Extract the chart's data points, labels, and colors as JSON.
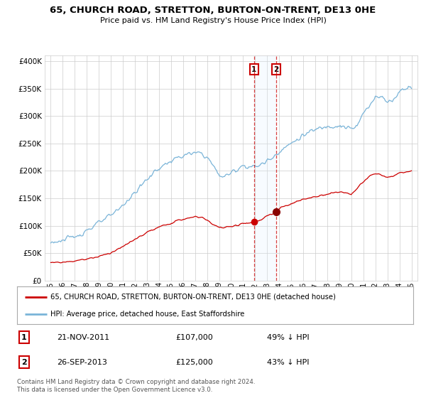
{
  "title": "65, CHURCH ROAD, STRETTON, BURTON-ON-TRENT, DE13 0HE",
  "subtitle": "Price paid vs. HM Land Registry's House Price Index (HPI)",
  "hpi_label": "HPI: Average price, detached house, East Staffordshire",
  "property_label": "65, CHURCH ROAD, STRETTON, BURTON-ON-TRENT, DE13 0HE (detached house)",
  "footer_text": "Contains HM Land Registry data © Crown copyright and database right 2024.\nThis data is licensed under the Open Government Licence v3.0.",
  "sale1_date": "21-NOV-2011",
  "sale1_price": 107000,
  "sale1_pct": "49% ↓ HPI",
  "sale2_date": "26-SEP-2013",
  "sale2_price": 125000,
  "sale2_pct": "43% ↓ HPI",
  "hpi_color": "#7ab4d8",
  "property_color": "#cc0000",
  "sale1_x": 2011.9,
  "sale2_x": 2013.75,
  "sale1_y": 107000,
  "sale2_y": 125000,
  "ylim": [
    0,
    410000
  ],
  "xlim_start": 1994.5,
  "xlim_end": 2025.5,
  "yticks": [
    0,
    50000,
    100000,
    150000,
    200000,
    250000,
    300000,
    350000,
    400000
  ],
  "xticks": [
    1995,
    1996,
    1997,
    1998,
    1999,
    2000,
    2001,
    2002,
    2003,
    2004,
    2005,
    2006,
    2007,
    2008,
    2009,
    2010,
    2011,
    2012,
    2013,
    2014,
    2015,
    2016,
    2017,
    2018,
    2019,
    2020,
    2021,
    2022,
    2023,
    2024,
    2025
  ],
  "bg_color": "#ffffff",
  "grid_color": "#cccccc",
  "highlight_color": "#ddeeff",
  "hpi_anchors_x": [
    1995,
    1996,
    1997,
    1998,
    1999,
    2000,
    2001,
    2002,
    2003,
    2004,
    2005,
    2006,
    2007,
    2007.5,
    2008,
    2008.5,
    2009,
    2009.5,
    2010,
    2010.5,
    2011,
    2011.5,
    2012,
    2012.5,
    2013,
    2013.5,
    2014,
    2015,
    2016,
    2017,
    2018,
    2019,
    2019.5,
    2020,
    2020.5,
    2021,
    2021.5,
    2022,
    2022.5,
    2023,
    2023.5,
    2024,
    2024.5,
    2025
  ],
  "hpi_anchors_y": [
    70000,
    73000,
    80000,
    92000,
    105000,
    118000,
    138000,
    160000,
    185000,
    205000,
    218000,
    228000,
    232000,
    233000,
    225000,
    210000,
    192000,
    190000,
    196000,
    204000,
    210000,
    208000,
    207000,
    212000,
    218000,
    226000,
    236000,
    250000,
    265000,
    275000,
    282000,
    283000,
    280000,
    276000,
    282000,
    305000,
    318000,
    338000,
    335000,
    325000,
    330000,
    345000,
    352000,
    355000
  ],
  "prop_anchors_x": [
    1995,
    1996,
    1997,
    1998,
    1999,
    2000,
    2001,
    2002,
    2003,
    2004,
    2005,
    2006,
    2007,
    2007.5,
    2008,
    2008.5,
    2009,
    2009.5,
    2010,
    2010.5,
    2011,
    2011.5,
    2011.9,
    2012,
    2012.5,
    2013,
    2013.5,
    2013.75,
    2014,
    2015,
    2016,
    2017,
    2018,
    2019,
    2019.5,
    2020,
    2020.5,
    2021,
    2021.5,
    2022,
    2022.5,
    2023,
    2023.5,
    2024,
    2024.5,
    2025
  ],
  "prop_anchors_y": [
    33000,
    33500,
    36000,
    39500,
    44000,
    51000,
    62000,
    75000,
    88000,
    97000,
    105000,
    112000,
    116000,
    116000,
    110000,
    103000,
    97000,
    96000,
    99000,
    101000,
    105000,
    104000,
    107000,
    107500,
    110000,
    118000,
    122000,
    125000,
    131000,
    140000,
    148000,
    153000,
    158000,
    162000,
    160000,
    158000,
    168000,
    180000,
    190000,
    195000,
    193000,
    188000,
    190000,
    196000,
    198000,
    200000
  ]
}
